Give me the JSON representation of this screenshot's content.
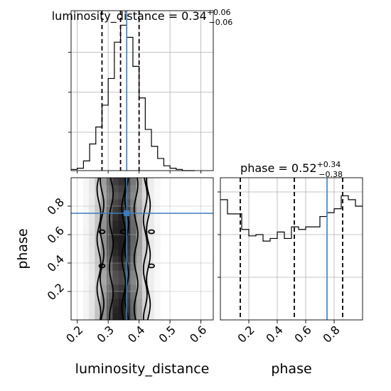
{
  "chart_data": {
    "type": "corner",
    "truths": {
      "luminosity_distance": 0.36,
      "phase": 0.75
    },
    "panels": [
      {
        "id": "hist_luminosity_distance",
        "type": "histogram",
        "param": "luminosity_distance",
        "title_main": "luminosity_distance = 0.34",
        "title_sup": "+0.06",
        "title_sub": "−0.06",
        "xlim": [
          0.18,
          0.64
        ],
        "quantiles": [
          0.28,
          0.34,
          0.4
        ],
        "bin_edges": [
          0.18,
          0.2,
          0.22,
          0.24,
          0.26,
          0.28,
          0.3,
          0.32,
          0.34,
          0.36,
          0.38,
          0.4,
          0.42,
          0.44,
          0.46,
          0.48,
          0.5,
          0.52,
          0.54,
          0.56,
          0.58
        ],
        "counts": [
          0.5,
          1,
          4,
          11,
          18,
          27,
          38,
          53,
          60,
          55,
          43,
          30,
          17,
          10,
          5,
          2,
          1,
          0.5,
          0,
          0
        ]
      },
      {
        "id": "hist_phase",
        "type": "histogram",
        "param": "phase",
        "title_main": "phase = 0.52",
        "title_sup": "+0.34",
        "title_sub": "−0.38",
        "xlim": [
          0.0,
          1.0
        ],
        "quantiles": [
          0.14,
          0.52,
          0.86
        ],
        "bin_edges": [
          0.0,
          0.05,
          0.1,
          0.15,
          0.2,
          0.25,
          0.3,
          0.35,
          0.4,
          0.45,
          0.5,
          0.55,
          0.6,
          0.65,
          0.7,
          0.75,
          0.8,
          0.85,
          0.9,
          0.95,
          1.0
        ],
        "counts": [
          93,
          82,
          82,
          70,
          65,
          66,
          61,
          63,
          68,
          63,
          72,
          70,
          72,
          72,
          80,
          83,
          86,
          96,
          93,
          88
        ]
      },
      {
        "id": "scatter_phase_vs_luminosity_distance",
        "type": "2d-density",
        "x_param": "luminosity_distance",
        "y_param": "phase",
        "xlim": [
          0.18,
          0.64
        ],
        "ylim": [
          0.0,
          1.0
        ],
        "x_ticks": [
          "0.2",
          "0.3",
          "0.4",
          "0.5",
          "0.6"
        ],
        "y_ticks": [
          "0.2",
          "0.4",
          "0.6",
          "0.8"
        ],
        "contour_x_levels": [
          {
            "left": 0.35,
            "right": 0.36
          },
          {
            "left": 0.31,
            "right": 0.39
          },
          {
            "left": 0.28,
            "right": 0.42
          },
          {
            "left": 0.27,
            "right": 0.43
          }
        ]
      }
    ],
    "x_tick_labels_right": [
      "0.2",
      "0.4",
      "0.6",
      "0.8"
    ],
    "xlabels": [
      "luminosity_distance",
      "phase"
    ],
    "ylabel": "phase",
    "colors": {
      "truth": "#3a7dc0",
      "ink": "#000000",
      "grid": "#b0b0b0"
    }
  }
}
